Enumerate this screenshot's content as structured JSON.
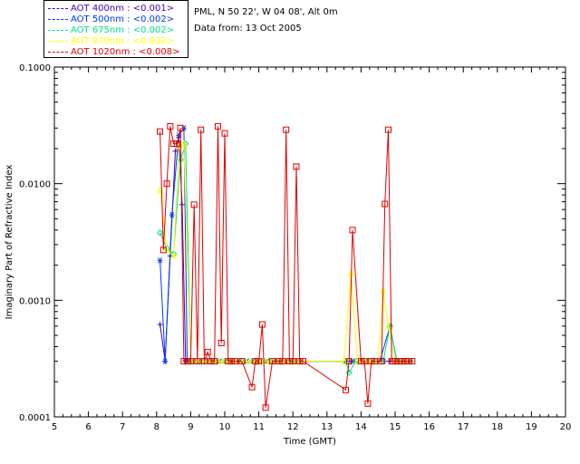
{
  "header": {
    "site": "PML, N 50 22', W 04 08', Alt 0m",
    "date_line": "Data from: 13 Oct 2005"
  },
  "chart_data": {
    "type": "line",
    "title": "",
    "xlabel": "Time (GMT)",
    "ylabel": "Imaginary Part of Refractive Index",
    "xlim": [
      5,
      20
    ],
    "ylim": [
      0.0001,
      0.1
    ],
    "yscale": "log",
    "xticks": [
      "5",
      "6",
      "7",
      "8",
      "9",
      "10",
      "11",
      "12",
      "13",
      "14",
      "15",
      "16",
      "17",
      "18",
      "19",
      "20"
    ],
    "yticks": [
      "0.0001",
      "0.0010",
      "0.0100",
      "0.1000"
    ],
    "legend_position": "top-left (outside)",
    "series": [
      {
        "name": "AOT 400nm : <0.001>",
        "color": "#3e00c8",
        "marker": "plus",
        "x": [
          8.1,
          8.25,
          8.4,
          8.55,
          8.65,
          8.75,
          8.85,
          9.0,
          9.2,
          9.4,
          9.6,
          9.8,
          10.0,
          10.2,
          10.4,
          10.6,
          10.8,
          11.0,
          11.2,
          11.4,
          11.6,
          11.8,
          12.0,
          12.2,
          13.5,
          13.7,
          13.9,
          14.1,
          14.3,
          14.5,
          14.7,
          14.85,
          15.0,
          15.2,
          15.4
        ],
        "y": [
          0.00062,
          0.0003,
          0.0024,
          0.019,
          0.025,
          0.0066,
          0.0003,
          0.0003,
          0.0003,
          0.0003,
          0.0003,
          0.0003,
          0.0003,
          0.0003,
          0.0003,
          0.0003,
          0.0003,
          0.0003,
          0.0003,
          0.0003,
          0.0003,
          0.0003,
          0.0003,
          0.0003,
          0.0003,
          0.0003,
          0.0003,
          0.0003,
          0.0003,
          0.0003,
          0.0003,
          0.0003,
          0.0003,
          0.0003,
          0.0003
        ]
      },
      {
        "name": "AOT 500nm : <0.002>",
        "color": "#0036ff",
        "marker": "asterisk",
        "x": [
          8.1,
          8.25,
          8.45,
          8.65,
          8.8,
          8.9,
          9.05,
          9.25,
          9.45,
          9.65,
          9.85,
          10.05,
          10.25,
          10.45,
          10.65,
          10.85,
          11.05,
          11.25,
          11.45,
          11.65,
          11.85,
          12.05,
          12.25,
          13.55,
          13.75,
          13.95,
          14.15,
          14.35,
          14.55,
          14.85,
          15.05,
          15.25,
          15.45
        ],
        "y": [
          0.0022,
          0.0003,
          0.0054,
          0.026,
          0.03,
          0.0003,
          0.0003,
          0.0003,
          0.0003,
          0.0003,
          0.0003,
          0.0003,
          0.0003,
          0.0003,
          0.0003,
          0.0003,
          0.0003,
          0.0003,
          0.0003,
          0.0003,
          0.0003,
          0.0003,
          0.0003,
          0.0003,
          0.0003,
          0.0003,
          0.0003,
          0.0003,
          0.0003,
          0.0006,
          0.0003,
          0.0003,
          0.0003
        ]
      },
      {
        "name": "AOT 675nm : <0.002>",
        "color": "#00e08a",
        "marker": "diamond",
        "x": [
          8.1,
          8.3,
          8.5,
          8.7,
          8.85,
          9.0,
          9.2,
          9.4,
          9.6,
          9.8,
          10.0,
          10.2,
          10.4,
          10.6,
          10.8,
          11.0,
          11.2,
          11.4,
          11.6,
          11.8,
          12.0,
          12.2,
          13.55,
          13.65,
          13.85,
          14.05,
          14.25,
          14.45,
          14.65,
          14.85,
          15.05,
          15.25,
          15.45
        ],
        "y": [
          0.0038,
          0.0028,
          0.0025,
          0.016,
          0.022,
          0.0003,
          0.0003,
          0.0003,
          0.0003,
          0.0003,
          0.0003,
          0.0003,
          0.0003,
          0.0003,
          0.0003,
          0.0003,
          0.0003,
          0.0003,
          0.0003,
          0.0003,
          0.0003,
          0.0003,
          0.0003,
          0.00024,
          0.0003,
          0.0003,
          0.0003,
          0.0003,
          0.0003,
          0.0006,
          0.0003,
          0.0003,
          0.0003
        ]
      },
      {
        "name": "AOT 870nm : <0.002>",
        "color": "#ffff00",
        "marker": "triangle",
        "x": [
          8.1,
          8.3,
          8.5,
          8.65,
          8.8,
          9.0,
          9.2,
          9.4,
          9.6,
          9.8,
          10.0,
          10.2,
          10.4,
          10.6,
          10.8,
          11.0,
          11.2,
          11.4,
          11.6,
          11.8,
          12.0,
          12.2,
          13.5,
          13.7,
          13.9,
          14.1,
          14.3,
          14.5,
          14.65,
          14.8,
          15.0,
          15.2,
          15.4
        ],
        "y": [
          0.0088,
          0.0027,
          0.0024,
          0.021,
          0.022,
          0.0003,
          0.0003,
          0.0003,
          0.0003,
          0.0003,
          0.0003,
          0.0003,
          0.0003,
          0.0003,
          0.0003,
          0.0003,
          0.0003,
          0.0003,
          0.0003,
          0.0003,
          0.0003,
          0.0003,
          0.0003,
          0.0017,
          0.0003,
          0.0003,
          0.0003,
          0.0003,
          0.0012,
          0.0006,
          0.0003,
          0.0003,
          0.0003
        ]
      },
      {
        "name": "AOT 1020nm : <0.008>",
        "color": "#e00000",
        "marker": "square",
        "x": [
          8.1,
          8.2,
          8.3,
          8.4,
          8.5,
          8.6,
          8.7,
          8.8,
          8.9,
          9.0,
          9.1,
          9.2,
          9.3,
          9.4,
          9.5,
          9.6,
          9.7,
          9.8,
          9.9,
          10.0,
          10.1,
          10.2,
          10.3,
          10.5,
          10.8,
          10.9,
          11.0,
          11.1,
          11.2,
          11.4,
          11.6,
          11.7,
          11.8,
          11.9,
          12.0,
          12.1,
          12.2,
          12.3,
          13.55,
          13.65,
          13.75,
          14.0,
          14.1,
          14.2,
          14.3,
          14.4,
          14.6,
          14.7,
          14.8,
          14.9,
          15.0,
          15.1,
          15.2,
          15.3,
          15.4,
          15.5
        ],
        "y": [
          0.028,
          0.0027,
          0.01,
          0.031,
          0.022,
          0.022,
          0.03,
          0.0003,
          0.0003,
          0.0003,
          0.0066,
          0.0003,
          0.029,
          0.0003,
          0.00036,
          0.0003,
          0.0003,
          0.031,
          0.00043,
          0.027,
          0.0003,
          0.0003,
          0.0003,
          0.0003,
          0.00018,
          0.0003,
          0.0003,
          0.00062,
          0.00012,
          0.0003,
          0.0003,
          0.0003,
          0.029,
          0.0003,
          0.0003,
          0.014,
          0.0003,
          0.0003,
          0.00017,
          0.0003,
          0.004,
          0.0003,
          0.0003,
          0.00013,
          0.0003,
          0.0003,
          0.0003,
          0.0067,
          0.029,
          0.0003,
          0.0003,
          0.0003,
          0.0003,
          0.0003,
          0.0003,
          0.0003
        ]
      }
    ]
  }
}
